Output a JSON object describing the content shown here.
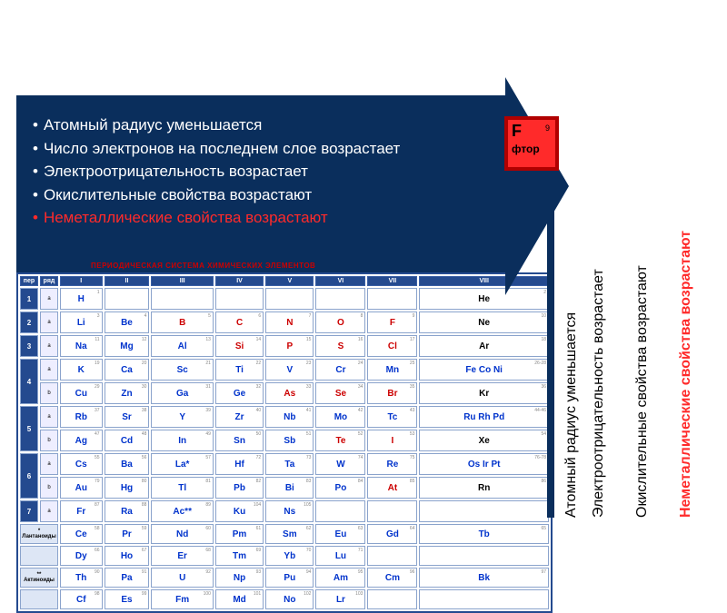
{
  "horizontal_bullets": [
    {
      "text": "Атомный радиус уменьшается",
      "color": "white"
    },
    {
      "text": "Число электронов на последнем слое возрастает",
      "color": "white"
    },
    {
      "text": "Электроотрицательность  возрастает",
      "color": "white"
    },
    {
      "text": "Окислительные свойства возрастают",
      "color": "white"
    },
    {
      "text": "Неметаллические свойства возрастают",
      "color": "red"
    }
  ],
  "fluorine": {
    "symbol": "F",
    "number": "9",
    "name": "фтор"
  },
  "vertical_labels": [
    {
      "text": "Атомный радиус уменьшается",
      "color": "#000"
    },
    {
      "text": "Электроотрицательность возрастает",
      "color": "#000"
    },
    {
      "text": "Окислительные свойства возрастают",
      "color": "#000"
    },
    {
      "text": "Неметаллические свойства возрастают",
      "color": "#ff2a2a"
    }
  ],
  "table_title": "ПЕРИОДИЧЕСКАЯ СИСТЕМА ХИМИЧЕСКИХ ЭЛЕМЕНТОВ",
  "groups": [
    "I",
    "II",
    "III",
    "IV",
    "V",
    "VI",
    "VII",
    "VIII"
  ],
  "periods": [
    {
      "n": "1",
      "ab": [
        "a"
      ],
      "cells": [
        [
          "H",
          "1",
          "blue"
        ],
        [],
        [],
        [],
        [],
        [],
        [],
        [
          "He",
          "2",
          "black"
        ]
      ]
    },
    {
      "n": "2",
      "ab": [
        "a"
      ],
      "cells": [
        [
          "Li",
          "3",
          "blue"
        ],
        [
          "Be",
          "4",
          "blue"
        ],
        [
          "B",
          "5",
          "red"
        ],
        [
          "C",
          "6",
          "red"
        ],
        [
          "N",
          "7",
          "red"
        ],
        [
          "O",
          "8",
          "red"
        ],
        [
          "F",
          "9",
          "red"
        ],
        [
          "Ne",
          "10",
          "black"
        ]
      ]
    },
    {
      "n": "3",
      "ab": [
        "a"
      ],
      "cells": [
        [
          "Na",
          "11",
          "blue"
        ],
        [
          "Mg",
          "12",
          "blue"
        ],
        [
          "Al",
          "13",
          "blue"
        ],
        [
          "Si",
          "14",
          "red"
        ],
        [
          "P",
          "15",
          "red"
        ],
        [
          "S",
          "16",
          "red"
        ],
        [
          "Cl",
          "17",
          "red"
        ],
        [
          "Ar",
          "18",
          "black"
        ]
      ]
    },
    {
      "n": "4",
      "ab": [
        "a",
        "b"
      ],
      "cells_a": [
        [
          "K",
          "19",
          "blue"
        ],
        [
          "Ca",
          "20",
          "blue"
        ],
        [
          "Sc",
          "21",
          "blue"
        ],
        [
          "Ti",
          "22",
          "blue"
        ],
        [
          "V",
          "23",
          "blue"
        ],
        [
          "Cr",
          "24",
          "blue"
        ],
        [
          "Mn",
          "25",
          "blue"
        ],
        [
          "Fe Co Ni",
          "26-28",
          "blue"
        ]
      ],
      "cells_b": [
        [
          "Cu",
          "29",
          "blue"
        ],
        [
          "Zn",
          "30",
          "blue"
        ],
        [
          "Ga",
          "31",
          "blue"
        ],
        [
          "Ge",
          "32",
          "blue"
        ],
        [
          "As",
          "33",
          "red"
        ],
        [
          "Se",
          "34",
          "red"
        ],
        [
          "Br",
          "35",
          "red"
        ],
        [
          "Kr",
          "36",
          "black"
        ]
      ]
    },
    {
      "n": "5",
      "ab": [
        "a",
        "b"
      ],
      "cells_a": [
        [
          "Rb",
          "37",
          "blue"
        ],
        [
          "Sr",
          "38",
          "blue"
        ],
        [
          "Y",
          "39",
          "blue"
        ],
        [
          "Zr",
          "40",
          "blue"
        ],
        [
          "Nb",
          "41",
          "blue"
        ],
        [
          "Mo",
          "42",
          "blue"
        ],
        [
          "Tc",
          "43",
          "blue"
        ],
        [
          "Ru Rh Pd",
          "44-46",
          "blue"
        ]
      ],
      "cells_b": [
        [
          "Ag",
          "47",
          "blue"
        ],
        [
          "Cd",
          "48",
          "blue"
        ],
        [
          "In",
          "49",
          "blue"
        ],
        [
          "Sn",
          "50",
          "blue"
        ],
        [
          "Sb",
          "51",
          "blue"
        ],
        [
          "Te",
          "52",
          "red"
        ],
        [
          "I",
          "53",
          "red"
        ],
        [
          "Xe",
          "54",
          "black"
        ]
      ]
    },
    {
      "n": "6",
      "ab": [
        "a",
        "b"
      ],
      "cells_a": [
        [
          "Cs",
          "55",
          "blue"
        ],
        [
          "Ba",
          "56",
          "blue"
        ],
        [
          "La*",
          "57",
          "blue"
        ],
        [
          "Hf",
          "72",
          "blue"
        ],
        [
          "Ta",
          "73",
          "blue"
        ],
        [
          "W",
          "74",
          "blue"
        ],
        [
          "Re",
          "75",
          "blue"
        ],
        [
          "Os Ir Pt",
          "76-78",
          "blue"
        ]
      ],
      "cells_b": [
        [
          "Au",
          "79",
          "blue"
        ],
        [
          "Hg",
          "80",
          "blue"
        ],
        [
          "Tl",
          "81",
          "blue"
        ],
        [
          "Pb",
          "82",
          "blue"
        ],
        [
          "Bi",
          "83",
          "blue"
        ],
        [
          "Po",
          "84",
          "blue"
        ],
        [
          "At",
          "85",
          "red"
        ],
        [
          "Rn",
          "86",
          "black"
        ]
      ]
    },
    {
      "n": "7",
      "ab": [
        "a"
      ],
      "cells": [
        [
          "Fr",
          "87",
          "blue"
        ],
        [
          "Ra",
          "88",
          "blue"
        ],
        [
          "Ac**",
          "89",
          "blue"
        ],
        [
          "Ku",
          "104",
          "blue"
        ],
        [
          "Ns",
          "105",
          "blue"
        ],
        [],
        [],
        []
      ]
    }
  ],
  "lanthanides": [
    [
      "Ce",
      "58"
    ],
    [
      "Pr",
      "59"
    ],
    [
      "Nd",
      "60"
    ],
    [
      "Pm",
      "61"
    ],
    [
      "Sm",
      "62"
    ],
    [
      "Eu",
      "63"
    ],
    [
      "Gd",
      "64"
    ],
    [
      "Tb",
      "65"
    ],
    [
      "Dy",
      "66"
    ],
    [
      "Ho",
      "67"
    ],
    [
      "Er",
      "68"
    ],
    [
      "Tm",
      "69"
    ],
    [
      "Yb",
      "70"
    ],
    [
      "Lu",
      "71"
    ]
  ],
  "actinides": [
    [
      "Th",
      "90"
    ],
    [
      "Pa",
      "91"
    ],
    [
      "U",
      "92"
    ],
    [
      "Np",
      "93"
    ],
    [
      "Pu",
      "94"
    ],
    [
      "Am",
      "95"
    ],
    [
      "Cm",
      "96"
    ],
    [
      "Bk",
      "97"
    ],
    [
      "Cf",
      "98"
    ],
    [
      "Es",
      "99"
    ],
    [
      "Fm",
      "100"
    ],
    [
      "Md",
      "101"
    ],
    [
      "No",
      "102"
    ],
    [
      "Lr",
      "103"
    ]
  ],
  "lan_label": "* Лантаноиды",
  "act_label": "** Актиноиды",
  "colors": {
    "arrow_bg": "#0a2e5c",
    "red_text": "#ff2a2a",
    "table_border": "#244a8f",
    "fluorine_bg": "#ff2a2a",
    "fluorine_border": "#b00000"
  }
}
